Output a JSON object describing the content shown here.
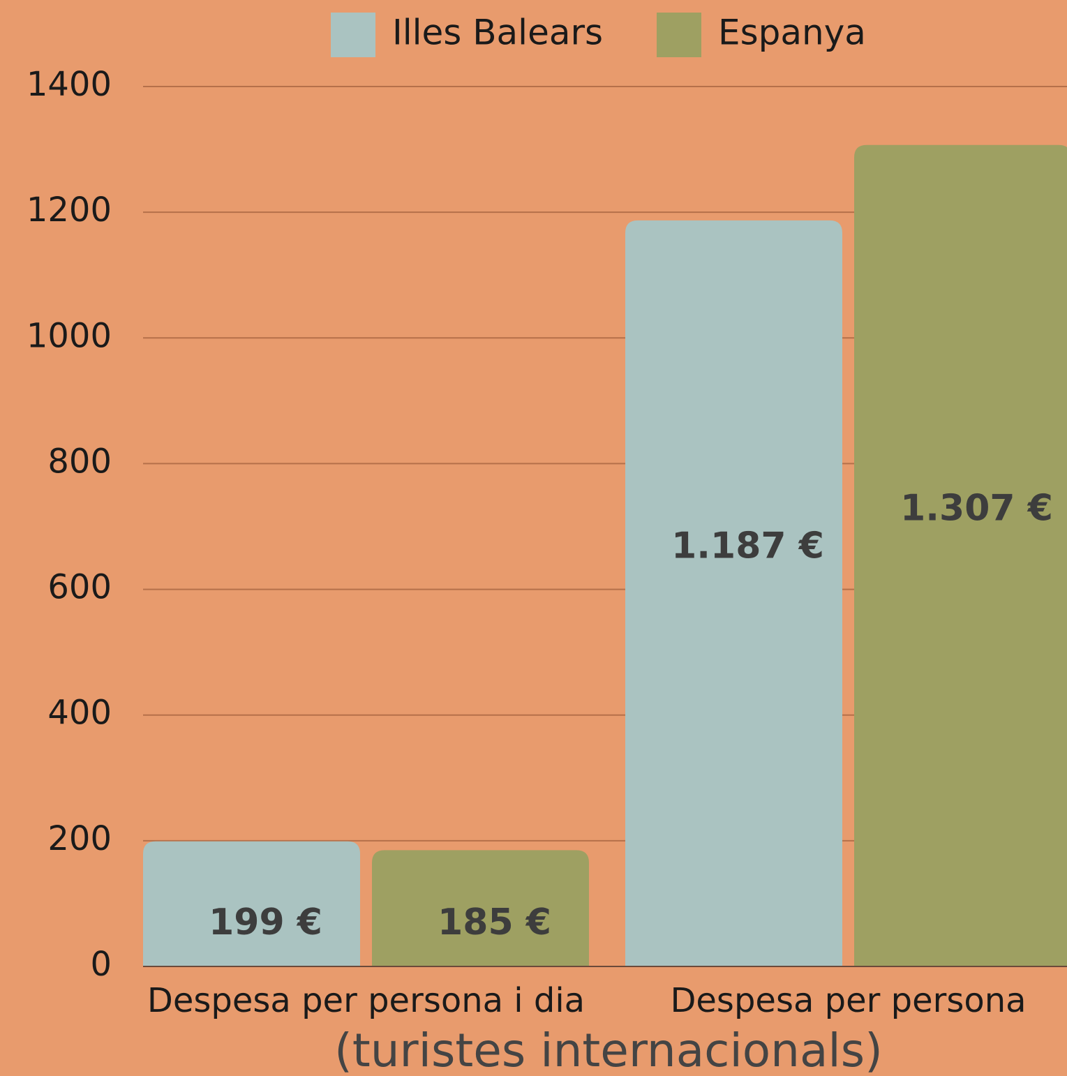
{
  "chart_data": {
    "type": "bar",
    "categories": [
      "Despesa per persona i dia",
      "Despesa per persona"
    ],
    "x_label": "(turistes internacionals)",
    "series": [
      {
        "name": "Illes Balears",
        "color": "#aac3c1",
        "values": [
          199,
          1187
        ],
        "value_labels": [
          "199 €",
          "1.187 €"
        ]
      },
      {
        "name": "Espanya",
        "color": "#9ea062",
        "values": [
          185,
          1307
        ],
        "value_labels": [
          "185 €",
          "1.307 €"
        ]
      }
    ],
    "ylim": [
      0,
      1400
    ],
    "yticks": [
      0,
      200,
      400,
      600,
      800,
      1000,
      1200,
      1400
    ],
    "grid": true,
    "legend": "top"
  }
}
